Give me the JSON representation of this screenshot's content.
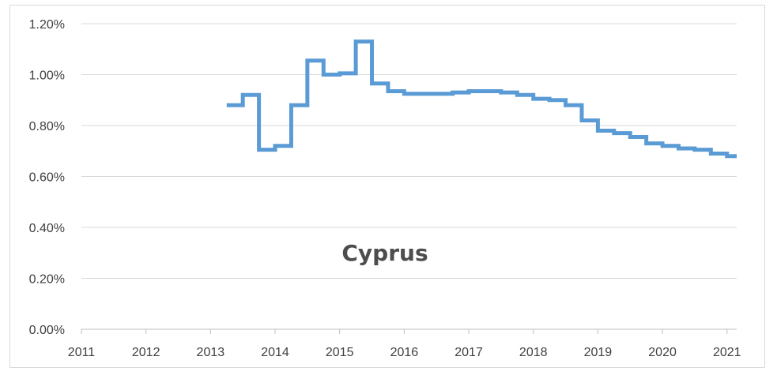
{
  "chart_data": {
    "type": "line",
    "title": "Cyprus",
    "xlabel": "",
    "ylabel": "",
    "x_ticks": [
      "2011",
      "2012",
      "2013",
      "2014",
      "2015",
      "2016",
      "2017",
      "2018",
      "2019",
      "2020",
      "2021"
    ],
    "y_ticks": [
      "0.00%",
      "0.20%",
      "0.40%",
      "0.60%",
      "0.80%",
      "1.00%",
      "1.20%"
    ],
    "xlim": [
      2011,
      2021.15
    ],
    "ylim": [
      0,
      1.2
    ],
    "y_unit": "%",
    "grid": true,
    "line_color": "#5b9bd5",
    "series": [
      {
        "step": "post",
        "x": [
          2013.25,
          2013.5,
          2013.75,
          2014.0,
          2014.25,
          2014.5,
          2014.75,
          2015.0,
          2015.25,
          2015.5,
          2015.75,
          2016.0,
          2016.25,
          2016.5,
          2016.75,
          2017.0,
          2017.25,
          2017.5,
          2017.75,
          2018.0,
          2018.25,
          2018.5,
          2018.75,
          2019.0,
          2019.25,
          2019.5,
          2019.75,
          2020.0,
          2020.25,
          2020.5,
          2020.75,
          2021.0
        ],
        "y": [
          0.88,
          0.92,
          0.705,
          0.72,
          0.88,
          1.055,
          1.0,
          1.005,
          1.13,
          0.965,
          0.935,
          0.925,
          0.925,
          0.925,
          0.93,
          0.935,
          0.935,
          0.93,
          0.92,
          0.905,
          0.9,
          0.88,
          0.82,
          0.78,
          0.77,
          0.755,
          0.73,
          0.72,
          0.71,
          0.705,
          0.69,
          0.68
        ],
        "x_end": 2021.15
      }
    ]
  }
}
